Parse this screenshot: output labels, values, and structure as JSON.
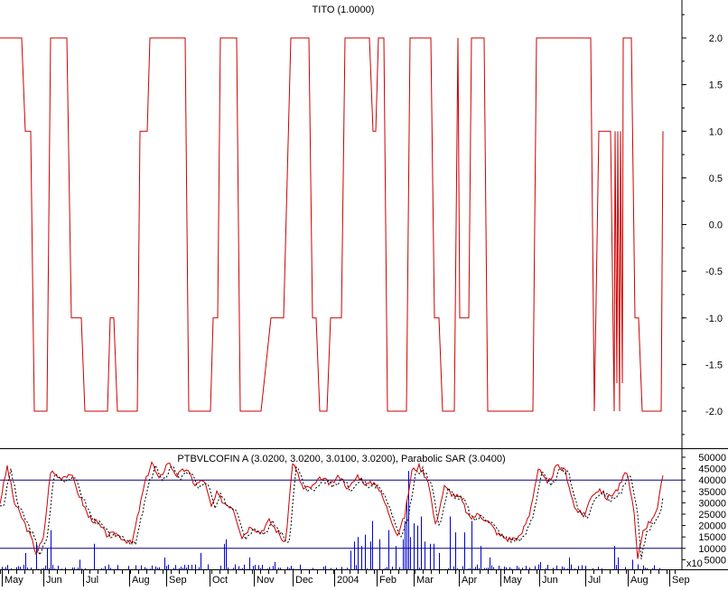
{
  "chart_data": [
    {
      "type": "line",
      "title": "TITO (1.0000)",
      "ylim": [
        -2.4,
        2.4
      ],
      "yticks": [
        "2.0",
        "1.5",
        "1.0",
        "0.5",
        "0.0",
        "-0.5",
        "-1.0",
        "-1.5",
        "-2.0"
      ],
      "ytick_values": [
        2.0,
        1.5,
        1.0,
        0.5,
        0.0,
        -0.5,
        -1.0,
        -1.5,
        -2.0
      ],
      "grid": false,
      "colors": {
        "line": "#cc0000"
      },
      "series": [
        {
          "points": [
            [
              0,
              2
            ],
            [
              24,
              2
            ],
            [
              28,
              1
            ],
            [
              34,
              1
            ],
            [
              38,
              -2
            ],
            [
              52,
              -2
            ],
            [
              56,
              2
            ],
            [
              74,
              2
            ],
            [
              79,
              -1
            ],
            [
              90,
              -1
            ],
            [
              94,
              -2
            ],
            [
              119,
              -2
            ],
            [
              122,
              -1
            ],
            [
              126,
              -1
            ],
            [
              130,
              -2
            ],
            [
              152,
              -2
            ],
            [
              155,
              1
            ],
            [
              163,
              1
            ],
            [
              166,
              2
            ],
            [
              205,
              2
            ],
            [
              209,
              -2
            ],
            [
              233,
              -2
            ],
            [
              236,
              -1
            ],
            [
              241,
              -1
            ],
            [
              244,
              2
            ],
            [
              262,
              2
            ],
            [
              266,
              -2
            ],
            [
              289,
              -2
            ],
            [
              300,
              -1
            ],
            [
              314,
              -1
            ],
            [
              322,
              2
            ],
            [
              342,
              2
            ],
            [
              346,
              -1
            ],
            [
              350,
              -1
            ],
            [
              354,
              -2
            ],
            [
              362,
              -2
            ],
            [
              366,
              -1
            ],
            [
              378,
              -1
            ],
            [
              382,
              2
            ],
            [
              409,
              2
            ],
            [
              413,
              1
            ],
            [
              416,
              1
            ],
            [
              419,
              2
            ],
            [
              425,
              2
            ],
            [
              429,
              -2
            ],
            [
              450,
              -2
            ],
            [
              454,
              2
            ],
            [
              477,
              2
            ],
            [
              481,
              -1
            ],
            [
              486,
              -1
            ],
            [
              490,
              -2
            ],
            [
              503,
              -2
            ],
            [
              507,
              2
            ],
            [
              509,
              -1
            ],
            [
              519,
              -1
            ],
            [
              522,
              2
            ],
            [
              536,
              2
            ],
            [
              540,
              -2
            ],
            [
              590,
              -2
            ],
            [
              594,
              2
            ],
            [
              654,
              2
            ],
            [
              658,
              -2
            ],
            [
              663,
              1
            ],
            [
              676,
              1
            ],
            [
              680,
              -2
            ],
            [
              681,
              1
            ],
            [
              683,
              -1.7
            ],
            [
              684,
              1
            ],
            [
              686,
              -2
            ],
            [
              687,
              1
            ],
            [
              689,
              -1.7
            ],
            [
              690,
              2
            ],
            [
              699,
              2
            ],
            [
              703,
              -1
            ],
            [
              707,
              -1
            ],
            [
              711,
              -2
            ],
            [
              732,
              -2
            ],
            [
              734,
              1
            ]
          ]
        }
      ]
    },
    {
      "type": "line",
      "title": "PTBVLCOFIN A (3.0200, 3.0200, 3.0100, 3.0200), Parabolic SAR (3.0400)",
      "ylim": [
        0,
        52000
      ],
      "yticks": [
        "50000",
        "45000",
        "40000",
        "35000",
        "30000",
        "25000",
        "20000",
        "15000",
        "10000",
        "5000"
      ],
      "ytick_values": [
        50000,
        45000,
        40000,
        35000,
        30000,
        25000,
        20000,
        15000,
        10000,
        5000
      ],
      "x10_label": "x10",
      "xticks": [
        "May",
        "Jun",
        "Jul",
        "Aug",
        "Sep",
        "Oct",
        "Nov",
        "Dec",
        "2004",
        "Feb",
        "Mar",
        "Apr",
        "May",
        "Jun",
        "Jul",
        "Aug",
        "Sep"
      ],
      "xtick_px": [
        2,
        48,
        92,
        143,
        184,
        232,
        281,
        324,
        370,
        417,
        458,
        508,
        554,
        597,
        648,
        695,
        741
      ],
      "hlines": [
        40000,
        10000
      ],
      "colors": {
        "price": "#cc0000",
        "sar": "#000000",
        "volume": "#0000cc",
        "hline": "#000080"
      },
      "price_anchors": [
        [
          0,
          30000
        ],
        [
          8,
          46000
        ],
        [
          16,
          30000
        ],
        [
          26,
          22000
        ],
        [
          34,
          15000
        ],
        [
          40,
          8000
        ],
        [
          48,
          14000
        ],
        [
          56,
          44000
        ],
        [
          66,
          41000
        ],
        [
          78,
          43000
        ],
        [
          86,
          35000
        ],
        [
          98,
          24000
        ],
        [
          108,
          21000
        ],
        [
          118,
          16000
        ],
        [
          130,
          16000
        ],
        [
          146,
          12000
        ],
        [
          160,
          38000
        ],
        [
          168,
          48000
        ],
        [
          176,
          40000
        ],
        [
          186,
          48000
        ],
        [
          196,
          42000
        ],
        [
          206,
          45000
        ],
        [
          216,
          38000
        ],
        [
          226,
          40000
        ],
        [
          234,
          28000
        ],
        [
          240,
          34000
        ],
        [
          248,
          30000
        ],
        [
          258,
          28000
        ],
        [
          268,
          15000
        ],
        [
          278,
          20000
        ],
        [
          288,
          17000
        ],
        [
          298,
          22000
        ],
        [
          306,
          18000
        ],
        [
          316,
          12000
        ],
        [
          324,
          48000
        ],
        [
          336,
          36000
        ],
        [
          346,
          37000
        ],
        [
          356,
          41000
        ],
        [
          366,
          38000
        ],
        [
          376,
          42000
        ],
        [
          386,
          36000
        ],
        [
          396,
          42000
        ],
        [
          406,
          38000
        ],
        [
          416,
          39000
        ],
        [
          424,
          32000
        ],
        [
          432,
          24000
        ],
        [
          440,
          16000
        ],
        [
          448,
          24000
        ],
        [
          456,
          44000
        ],
        [
          464,
          46000
        ],
        [
          474,
          40000
        ],
        [
          482,
          20000
        ],
        [
          492,
          37000
        ],
        [
          500,
          34000
        ],
        [
          510,
          32000
        ],
        [
          520,
          23000
        ],
        [
          530,
          25000
        ],
        [
          540,
          22000
        ],
        [
          552,
          16000
        ],
        [
          562,
          14000
        ],
        [
          576,
          15000
        ],
        [
          586,
          25000
        ],
        [
          596,
          45000
        ],
        [
          606,
          38000
        ],
        [
          616,
          46000
        ],
        [
          626,
          44000
        ],
        [
          636,
          28000
        ],
        [
          646,
          24000
        ],
        [
          656,
          34000
        ],
        [
          664,
          36000
        ],
        [
          672,
          32000
        ],
        [
          684,
          36000
        ],
        [
          694,
          44000
        ],
        [
          702,
          25000
        ],
        [
          706,
          5000
        ],
        [
          712,
          18000
        ],
        [
          720,
          22000
        ],
        [
          728,
          28000
        ],
        [
          734,
          42000
        ]
      ],
      "volume_spikes": [
        [
          27,
          8000
        ],
        [
          40,
          12000
        ],
        [
          52,
          10000
        ],
        [
          55,
          18000
        ],
        [
          88,
          5000
        ],
        [
          103,
          12000
        ],
        [
          182,
          6000
        ],
        [
          222,
          8000
        ],
        [
          248,
          12000
        ],
        [
          250,
          14000
        ],
        [
          276,
          6000
        ],
        [
          303,
          4000
        ],
        [
          387,
          9000
        ],
        [
          392,
          13000
        ],
        [
          396,
          15000
        ],
        [
          400,
          11000
        ],
        [
          404,
          16000
        ],
        [
          409,
          13000
        ],
        [
          412,
          22000
        ],
        [
          420,
          14000
        ],
        [
          430,
          18000
        ],
        [
          438,
          11000
        ],
        [
          446,
          14000
        ],
        [
          448,
          22000
        ],
        [
          450,
          31000
        ],
        [
          452,
          44000
        ],
        [
          454,
          15000
        ],
        [
          458,
          21000
        ],
        [
          462,
          20000
        ],
        [
          466,
          24000
        ],
        [
          470,
          13000
        ],
        [
          476,
          12000
        ],
        [
          480,
          12000
        ],
        [
          486,
          8000
        ],
        [
          498,
          24000
        ],
        [
          504,
          17000
        ],
        [
          514,
          17000
        ],
        [
          522,
          22000
        ],
        [
          532,
          11000
        ],
        [
          542,
          6000
        ],
        [
          598,
          4000
        ],
        [
          630,
          6000
        ],
        [
          680,
          11000
        ],
        [
          684,
          6000
        ],
        [
          700,
          5000
        ],
        [
          706,
          3000
        ]
      ]
    }
  ]
}
